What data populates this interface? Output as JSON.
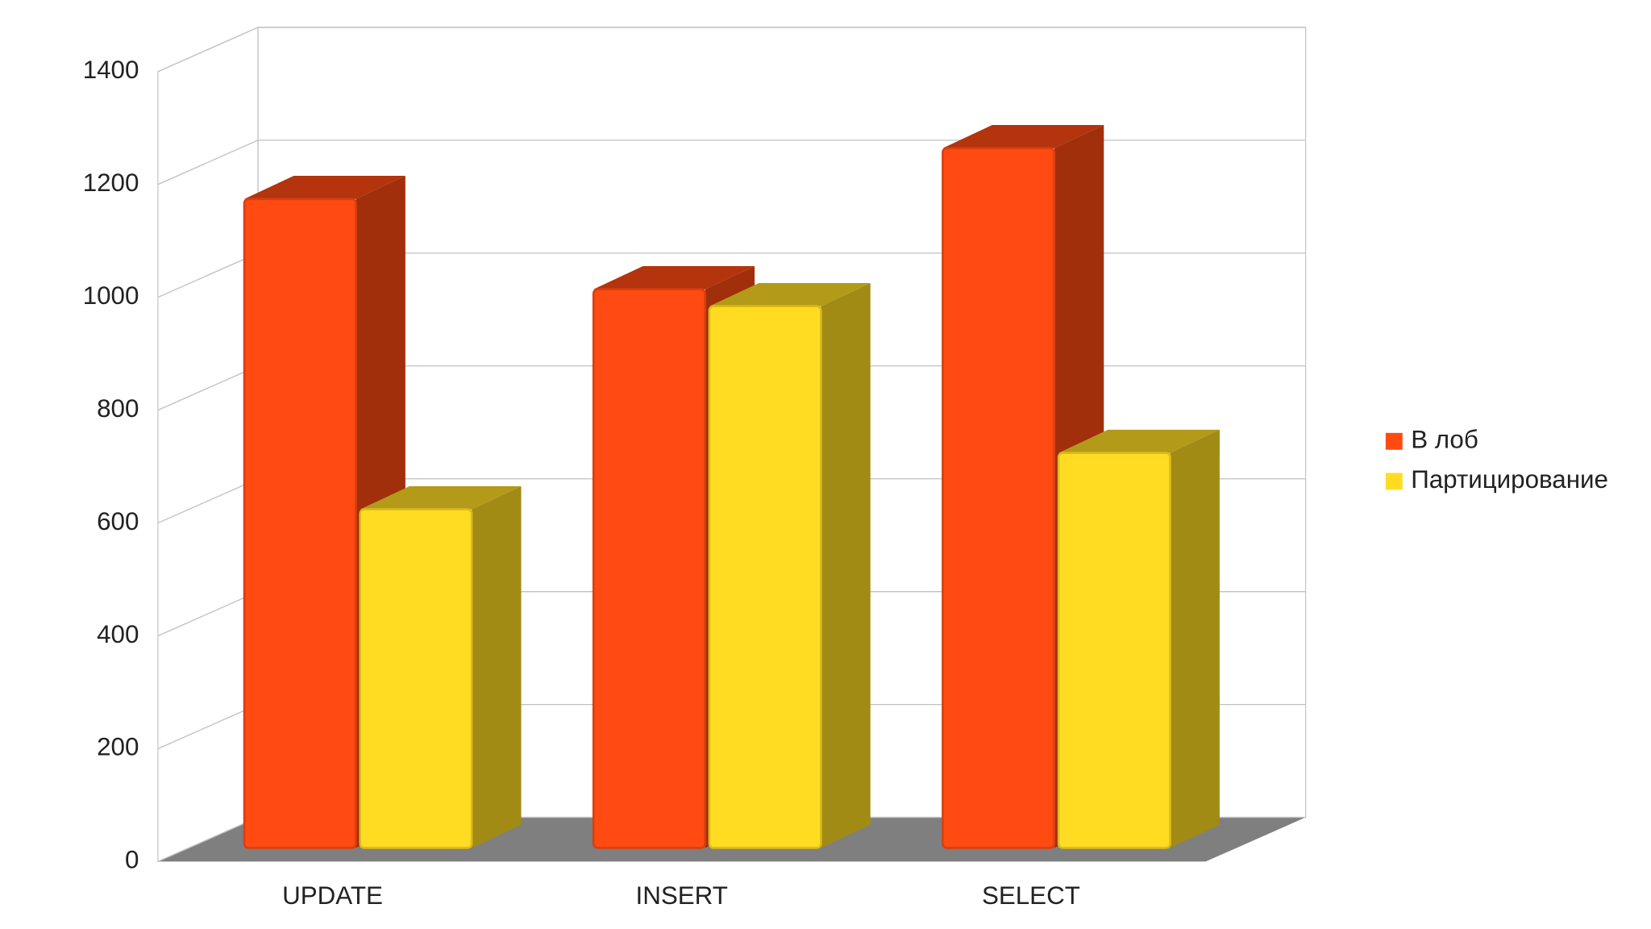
{
  "chart_data": {
    "type": "bar3d",
    "categories": [
      "UPDATE",
      "INSERT",
      "SELECT"
    ],
    "series": [
      {
        "name": "В лоб",
        "color": "#ff4a12",
        "values": [
          1150,
          990,
          1240
        ]
      },
      {
        "name": "Партицирование",
        "color": "#ffdc22",
        "values": [
          600,
          960,
          700
        ]
      }
    ],
    "ylim": [
      0,
      1400
    ],
    "yticks": [
      0,
      200,
      400,
      600,
      800,
      1000,
      1200,
      1400
    ],
    "grid": true,
    "legend": "right"
  }
}
